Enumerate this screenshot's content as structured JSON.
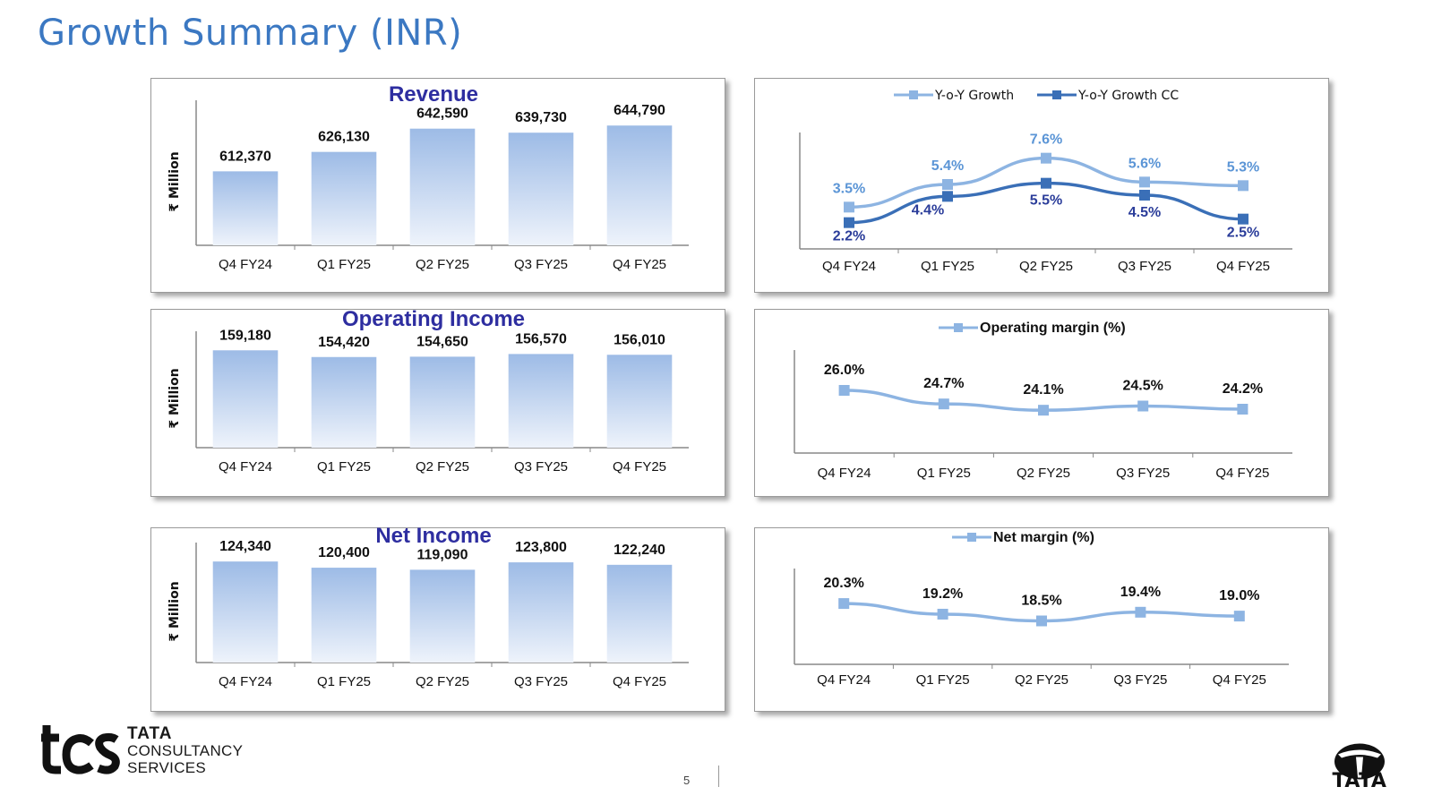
{
  "page": {
    "title": "Growth Summary (INR)",
    "page_number": "5",
    "logo_text": {
      "line1": "TATA",
      "line2": "CONSULTANCY",
      "line3": "SERVICES"
    },
    "tata_word": "TATA"
  },
  "colors": {
    "title": "#3b78c2",
    "bar_top": "#9dbbe6",
    "bar_bottom": "#eef3fb",
    "series_light": "#8db4e2",
    "series_dark": "#3a6fb7",
    "label_light": "#5b95d6",
    "label_dark": "#2b3d9a",
    "chart_title": "#2e2ea0"
  },
  "chart_data": [
    {
      "id": "revenue",
      "type": "bar",
      "title": "Revenue",
      "ylabel": "₹ Million",
      "categories": [
        "Q4 FY24",
        "Q1 FY25",
        "Q2 FY25",
        "Q3 FY25",
        "Q4 FY25"
      ],
      "values": [
        612370,
        626130,
        642590,
        639730,
        644790
      ],
      "value_labels": [
        "612,370",
        "626,130",
        "642,590",
        "639,730",
        "644,790"
      ],
      "ylim": [
        560000,
        650000
      ]
    },
    {
      "id": "growth",
      "type": "line",
      "categories": [
        "Q4 FY24",
        "Q1 FY25",
        "Q2 FY25",
        "Q3 FY25",
        "Q4 FY25"
      ],
      "series": [
        {
          "name": "Y-o-Y Growth",
          "values": [
            3.5,
            5.4,
            7.6,
            5.6,
            5.3
          ],
          "labels": [
            "3.5%",
            "5.4%",
            "7.6%",
            "5.6%",
            "5.3%"
          ]
        },
        {
          "name": "Y-o-Y Growth CC",
          "values": [
            2.2,
            4.4,
            5.5,
            4.5,
            2.5
          ],
          "labels": [
            "2.2%",
            "4.4%",
            "5.5%",
            "4.5%",
            "2.5%"
          ]
        }
      ],
      "ylim": [
        0,
        9
      ],
      "legend": "top"
    },
    {
      "id": "operating_income",
      "type": "bar",
      "title": "Operating Income",
      "ylabel": "₹ Million",
      "categories": [
        "Q4 FY24",
        "Q1 FY25",
        "Q2 FY25",
        "Q3 FY25",
        "Q4 FY25"
      ],
      "values": [
        159180,
        154420,
        154650,
        156570,
        156010
      ],
      "value_labels": [
        "159,180",
        "154,420",
        "154,650",
        "156,570",
        "156,010"
      ],
      "ylim": [
        90000,
        160000
      ]
    },
    {
      "id": "operating_margin",
      "type": "line",
      "categories": [
        "Q4 FY24",
        "Q1 FY25",
        "Q2 FY25",
        "Q3 FY25",
        "Q4 FY25"
      ],
      "series": [
        {
          "name": "Operating margin (%)",
          "values": [
            26.0,
            24.7,
            24.1,
            24.5,
            24.2
          ],
          "labels": [
            "26.0%",
            "24.7%",
            "24.1%",
            "24.5%",
            "24.2%"
          ]
        }
      ],
      "ylim": [
        20,
        29
      ],
      "legend": "top"
    },
    {
      "id": "net_income",
      "type": "bar",
      "title": "Net Income",
      "ylabel": "₹ Million",
      "categories": [
        "Q4 FY24",
        "Q1 FY25",
        "Q2 FY25",
        "Q3 FY25",
        "Q4 FY25"
      ],
      "values": [
        124340,
        120400,
        119090,
        123800,
        122240
      ],
      "value_labels": [
        "124,340",
        "120,400",
        "119,090",
        "123,800",
        "122,240"
      ],
      "ylim": [
        60000,
        125000
      ]
    },
    {
      "id": "net_margin",
      "type": "line",
      "categories": [
        "Q4 FY24",
        "Q1 FY25",
        "Q2 FY25",
        "Q3 FY25",
        "Q4 FY25"
      ],
      "series": [
        {
          "name": "Net margin (%)",
          "values": [
            20.3,
            19.2,
            18.5,
            19.4,
            19.0
          ],
          "labels": [
            "20.3%",
            "19.2%",
            "18.5%",
            "19.4%",
            "19.0%"
          ]
        }
      ],
      "ylim": [
        14,
        23
      ],
      "legend": "top"
    }
  ]
}
